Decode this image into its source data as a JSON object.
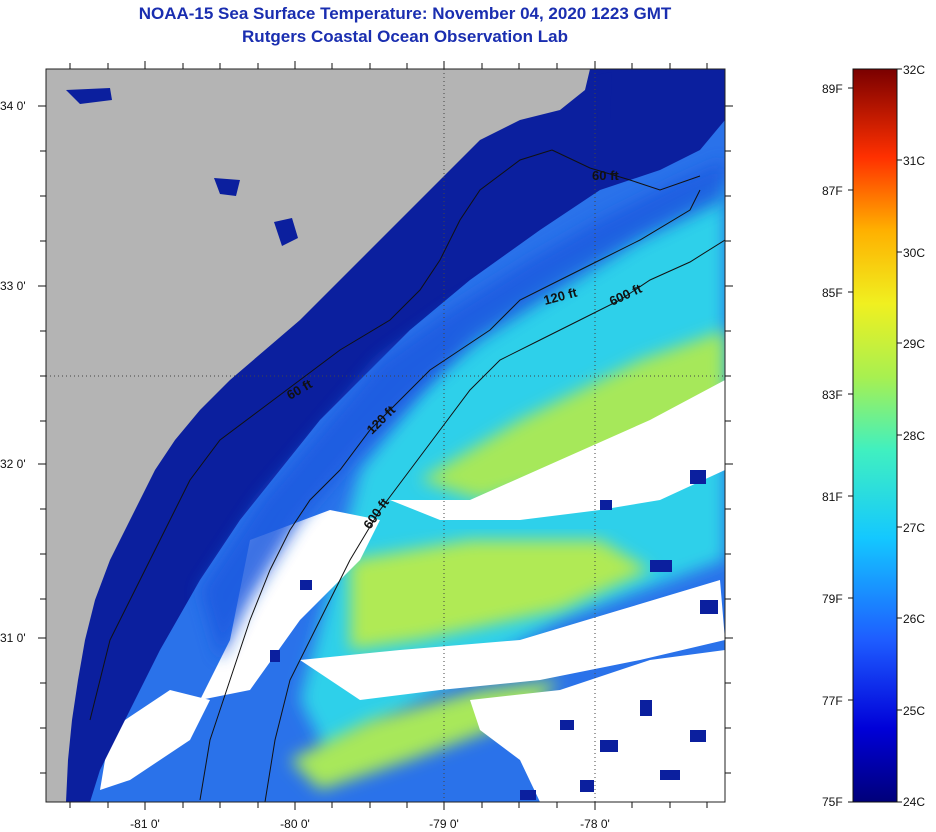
{
  "title": {
    "line1": "NOAA-15 Sea Surface Temperature:  November 04, 2020 1223 GMT",
    "line2": "Rutgers Coastal Ocean Observation Lab"
  },
  "map": {
    "lat_labels": [
      "34 0'",
      "33 0'",
      "32 0'",
      "31 0'"
    ],
    "lon_labels": [
      "-81 0'",
      "-80 0'",
      "-79 0'",
      "-78 0'"
    ],
    "contours": [
      {
        "label": "60 ft"
      },
      {
        "label": "60 ft"
      },
      {
        "label": "120 ft"
      },
      {
        "label": "120 ft"
      },
      {
        "label": "600 ft"
      },
      {
        "label": "600 ft"
      }
    ],
    "colors": {
      "land": "#b4b4b4",
      "clouds": "#ffffff",
      "shelf_water": "#0b1f9e",
      "mid_water": "#2f7ff0",
      "offshore_water": "#2fd8e8",
      "warm_water": "#a6e85a"
    }
  },
  "colorbar": {
    "fahrenheit_labels": [
      "89F",
      "87F",
      "85F",
      "83F",
      "81F",
      "79F",
      "77F",
      "75F"
    ],
    "celsius_labels": [
      "32C",
      "31C",
      "30C",
      "29C",
      "28C",
      "27C",
      "26C",
      "25C",
      "24C"
    ],
    "min_c": 24,
    "max_c": 32
  }
}
